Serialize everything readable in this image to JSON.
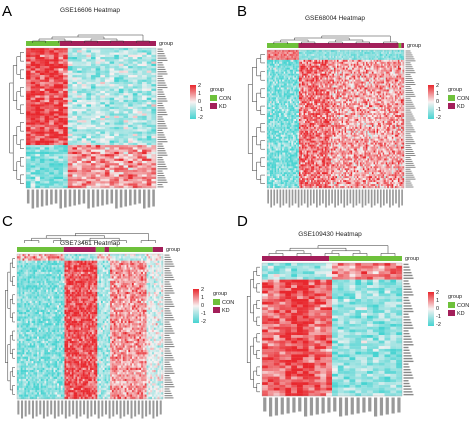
{
  "colors": {
    "low": "#46d3d1",
    "mid": "#f8f2f2",
    "high": "#e8272d",
    "con": "#6ec13b",
    "kd": "#a31f5a",
    "dendro": "#333333"
  },
  "chart_data": [
    {
      "type": "heatmap",
      "panel": "A",
      "title": "GSE16606 Heatmap",
      "legend": {
        "title": "group",
        "scale": [
          "2",
          "1",
          "0",
          "-1",
          "-2"
        ],
        "groups": [
          "CON",
          "KD"
        ]
      },
      "group_order": [
        "CON",
        "KD"
      ],
      "group_fraction": [
        0.26,
        0.74
      ],
      "pattern": "A",
      "rows": 62,
      "cols": 28
    },
    {
      "type": "heatmap",
      "panel": "B",
      "title": "GSE68004 Heatmap",
      "legend": {
        "title": "group",
        "scale": [
          "2",
          "1",
          "0",
          "-1",
          "-2"
        ],
        "groups": [
          "CON",
          "KD"
        ]
      },
      "group_order": [
        "CON",
        "KD",
        "CON",
        "KD"
      ],
      "group_fraction": [
        0.23,
        0.73,
        0.02,
        0.02
      ],
      "pattern": "B",
      "rows": 70,
      "cols": 90
    },
    {
      "type": "heatmap",
      "panel": "C",
      "title": "GSE73461 Heatmap",
      "legend": {
        "title": "group",
        "scale": [
          "2",
          "1",
          "0",
          "-1",
          "-2"
        ],
        "groups": [
          "CON",
          "KD"
        ]
      },
      "group_order": [
        "CON",
        "KD",
        "CON",
        "KD",
        "CON",
        "KD"
      ],
      "group_fraction": [
        0.32,
        0.22,
        0.06,
        0.03,
        0.3,
        0.07
      ],
      "pattern": "C",
      "rows": 65,
      "cols": 80
    },
    {
      "type": "heatmap",
      "panel": "D",
      "title": "GSE109430 Heatmap",
      "legend": {
        "title": "group",
        "scale": [
          "2",
          "1",
          "0",
          "-1",
          "-2"
        ],
        "groups": [
          "CON",
          "KD"
        ]
      },
      "group_order": [
        "KD",
        "CON"
      ],
      "group_fraction": [
        0.48,
        0.52
      ],
      "pattern": "D",
      "rows": 48,
      "cols": 24
    }
  ]
}
